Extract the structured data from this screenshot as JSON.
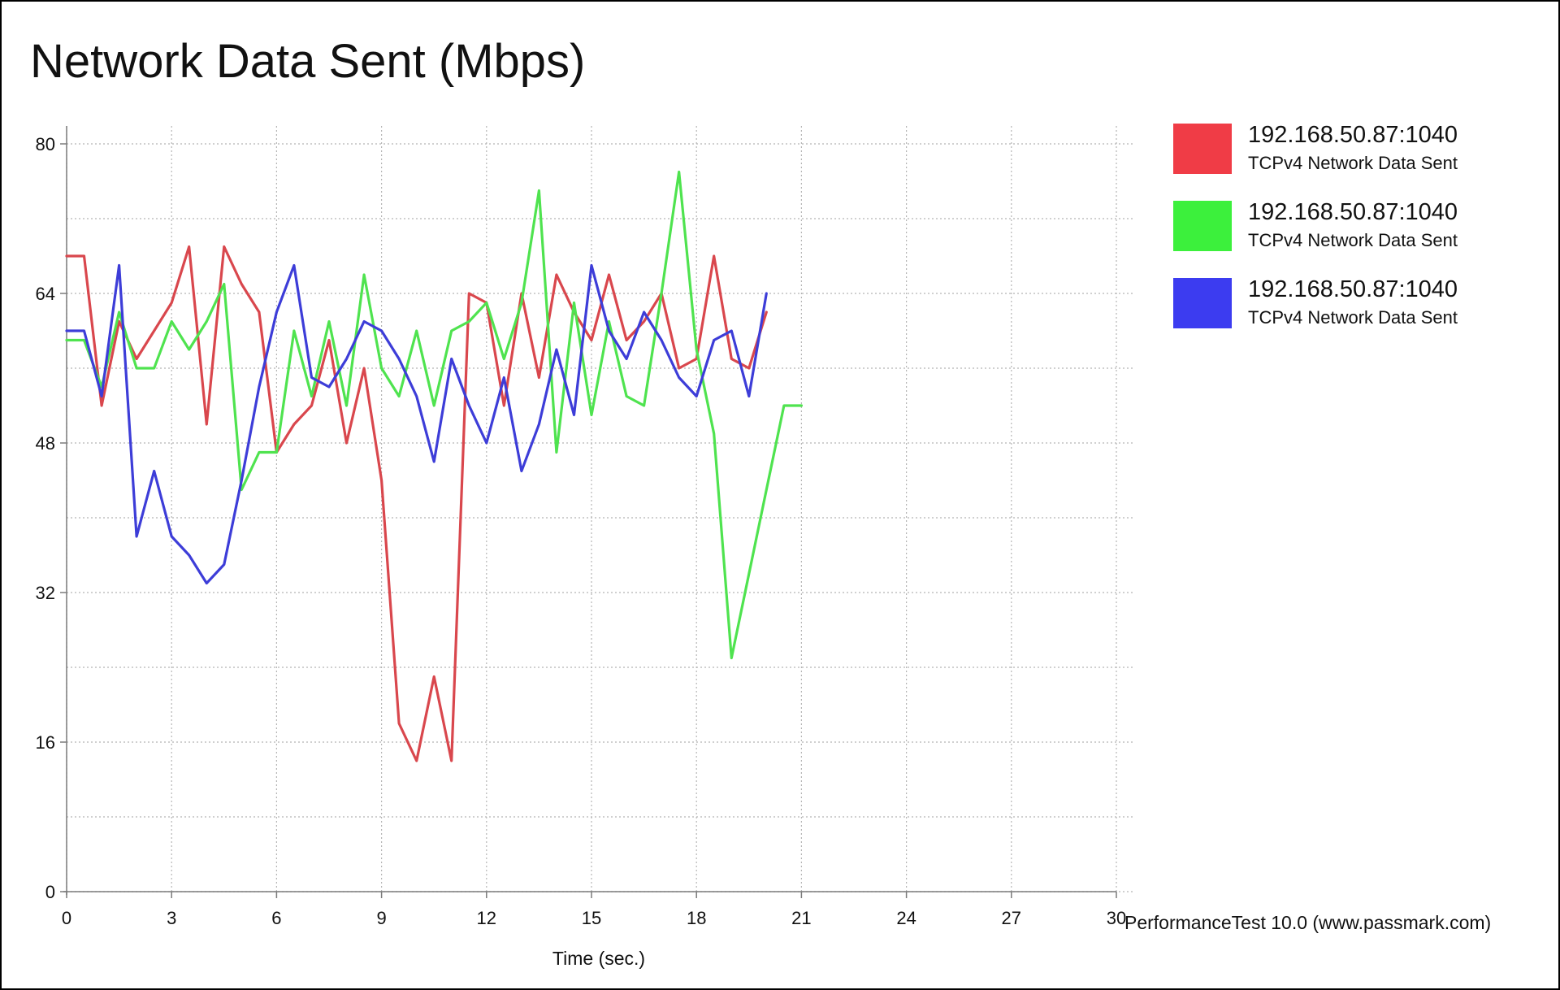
{
  "chart_data": {
    "type": "line",
    "title": "Network Data Sent (Mbps)",
    "xlabel": "Time (sec.)",
    "ylabel": "",
    "xlim": [
      0,
      30
    ],
    "ylim": [
      0,
      80
    ],
    "x_ticks": [
      0,
      3,
      6,
      9,
      12,
      15,
      18,
      21,
      24,
      27,
      30
    ],
    "y_ticks": [
      0,
      16,
      32,
      48,
      64,
      80
    ],
    "grid": true,
    "legend_position": "right",
    "series": [
      {
        "name": "192.168.50.87:1040",
        "description": "TCPv4 Network Data Sent",
        "color": "#d9474d",
        "x": [
          0,
          0.5,
          1,
          1.5,
          2,
          2.5,
          3,
          3.5,
          4,
          4.5,
          5,
          5.5,
          6,
          6.5,
          7,
          7.5,
          8,
          8.5,
          9,
          9.5,
          10,
          10.5,
          11,
          11.5,
          12,
          12.5,
          13,
          13.5,
          14,
          14.5,
          15,
          15.5,
          16,
          16.5,
          17,
          17.5,
          18,
          18.5,
          19,
          19.5,
          20
        ],
        "values": [
          68,
          68,
          52,
          61,
          57,
          60,
          63,
          69,
          50,
          69,
          65,
          62,
          47,
          50,
          52,
          59,
          48,
          56,
          44,
          18,
          14,
          23,
          14,
          64,
          63,
          52,
          64,
          55,
          66,
          62,
          59,
          66,
          59,
          61,
          64,
          56,
          57,
          68,
          57,
          56,
          62
        ]
      },
      {
        "name": "192.168.50.87:1040",
        "description": "TCPv4 Network Data Sent",
        "color": "#4fe34f",
        "x": [
          0,
          0.5,
          1,
          1.5,
          2,
          2.5,
          3,
          3.5,
          4,
          4.5,
          5,
          5.5,
          6,
          6.5,
          7,
          7.5,
          8,
          8.5,
          9,
          9.5,
          10,
          10.5,
          11,
          11.5,
          12,
          12.5,
          13,
          13.5,
          14,
          14.5,
          15,
          15.5,
          16,
          16.5,
          17,
          17.5,
          18,
          18.5,
          19,
          19.5,
          20,
          20.5,
          21
        ],
        "values": [
          59,
          59,
          54,
          62,
          56,
          56,
          61,
          58,
          61,
          65,
          43,
          47,
          47,
          60,
          53,
          61,
          52,
          66,
          56,
          53,
          60,
          52,
          60,
          61,
          63,
          57,
          63,
          75,
          47,
          63,
          51,
          61,
          53,
          52,
          64,
          77,
          58,
          49,
          25,
          34,
          43,
          52,
          52
        ]
      },
      {
        "name": "192.168.50.87:1040",
        "description": "TCPv4 Network Data Sent",
        "color": "#3d3dd8",
        "x": [
          0,
          0.5,
          1,
          1.5,
          2,
          2.5,
          3,
          3.5,
          4,
          4.5,
          5,
          5.5,
          6,
          6.5,
          7,
          7.5,
          8,
          8.5,
          9,
          9.5,
          10,
          10.5,
          11,
          11.5,
          12,
          12.5,
          13,
          13.5,
          14,
          14.5,
          15,
          15.5,
          16,
          16.5,
          17,
          17.5,
          18,
          18.5,
          19,
          19.5,
          20
        ],
        "values": [
          60,
          60,
          53,
          67,
          38,
          45,
          38,
          36,
          33,
          35,
          44,
          54,
          62,
          67,
          55,
          54,
          57,
          61,
          60,
          57,
          53,
          46,
          57,
          52,
          48,
          55,
          45,
          50,
          58,
          51,
          67,
          60,
          57,
          62,
          59,
          55,
          53,
          59,
          60,
          53,
          64
        ]
      }
    ],
    "credit": "PerformanceTest 10.0 (www.passmark.com)"
  }
}
